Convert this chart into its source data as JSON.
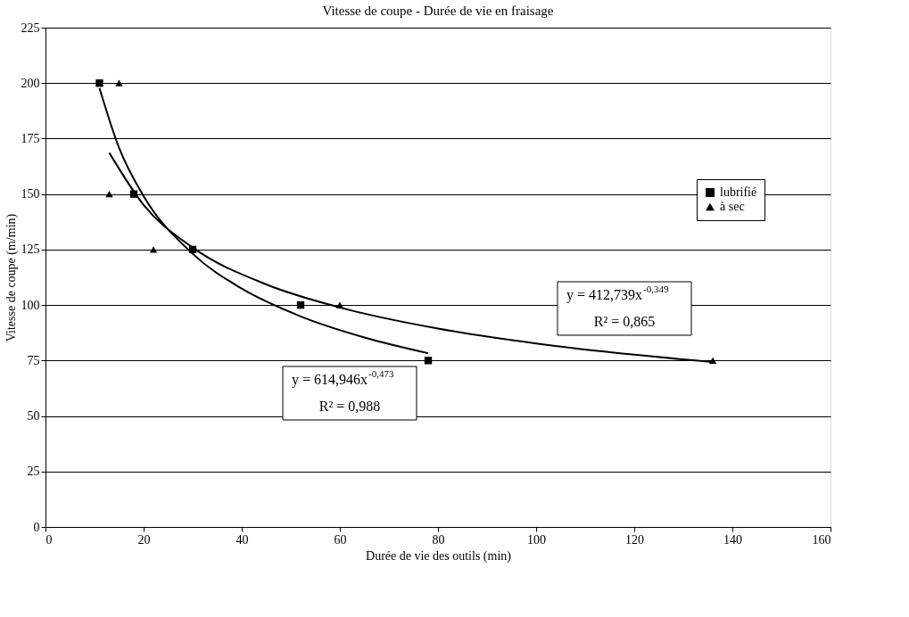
{
  "chart_data": {
    "type": "scatter",
    "title": "Vitesse de coupe - Durée de vie en fraisage",
    "xlabel": "Durée de vie des outils (min)",
    "ylabel": "Vitesse de coupe (m/min)",
    "xlim": [
      0,
      160
    ],
    "xticks": [
      0,
      20,
      40,
      60,
      80,
      100,
      120,
      140,
      160
    ],
    "ylim": [
      0,
      225
    ],
    "yticks": [
      0,
      25,
      50,
      75,
      100,
      125,
      150,
      175,
      200,
      225
    ],
    "grid": "y",
    "legend": "right",
    "series": [
      {
        "name": "lubrifié",
        "marker": "square",
        "color": "#000000",
        "x": [
          11,
          18,
          30,
          52,
          78
        ],
        "values": [
          200,
          150,
          125,
          100,
          75
        ]
      },
      {
        "name": "à sec",
        "marker": "triangle",
        "color": "#000000",
        "x": [
          15,
          13,
          22,
          60,
          136
        ],
        "values": [
          200,
          150,
          125,
          100,
          75
        ]
      },
      {
        "type": "line",
        "color": "#000000",
        "x": [
          11,
          15,
          20,
          30,
          40,
          52,
          65,
          78
        ],
        "values": [
          197.8,
          170.8,
          149.1,
          123.1,
          107.4,
          94.9,
          85.4,
          78.3
        ]
      },
      {
        "type": "line",
        "color": "#000000",
        "x": [
          13,
          20,
          30,
          45,
          60,
          80,
          100,
          120,
          136
        ],
        "values": [
          168.6,
          145.1,
          125.9,
          109.3,
          98.9,
          89.4,
          82.7,
          77.6,
          74.3
        ]
      }
    ],
    "annotations": [
      "y = 412,739x$^{-0,349}$",
      "R² = 0,865",
      "y = 614,946x$^{-0,473}$",
      "R² = 0,988"
    ]
  }
}
